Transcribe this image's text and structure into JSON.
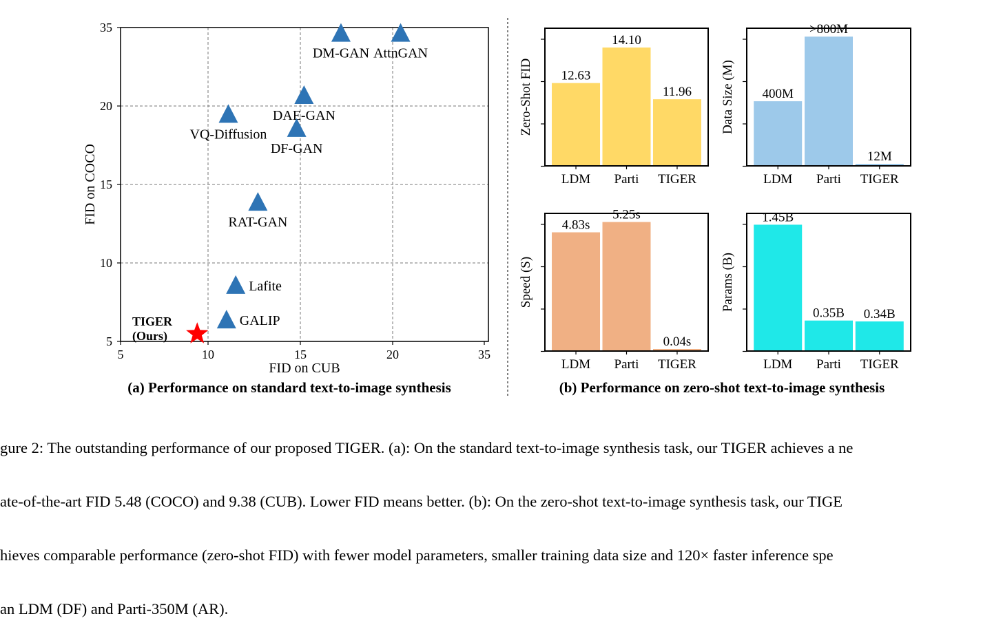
{
  "colors": {
    "marker": "#2e74b5",
    "tiger_marker": "#ff0000",
    "fid_bar": "#ffd966",
    "data_bar": "#9dc9ea",
    "speed_bar": "#f0b084",
    "params_bar": "#1fe8e8"
  },
  "chart_data": [
    {
      "type": "scatter",
      "subtitle": "(a) Performance on standard text-to-image synthesis",
      "xlabel": "FID on CUB",
      "ylabel": "FID on COCO",
      "xlim": [
        5,
        35
      ],
      "ylim": [
        5,
        35
      ],
      "xticks": [
        5,
        10,
        15,
        20,
        35
      ],
      "yticks": [
        5,
        10,
        15,
        20,
        35
      ],
      "grid": true,
      "marker_icon": "triangle-up",
      "points": [
        {
          "label": "DM-GAN",
          "x": 17.2,
          "y": 34.0,
          "anchor": "below"
        },
        {
          "label": "AttnGAN",
          "x": 21.3,
          "y": 34.0,
          "anchor": "below"
        },
        {
          "label": "DAE-GAN",
          "x": 15.2,
          "y": 22.1,
          "anchor": "below"
        },
        {
          "label": "VQ-Diffusion",
          "x": 11.1,
          "y": 19.5,
          "anchor": "below"
        },
        {
          "label": "DF-GAN",
          "x": 14.8,
          "y": 18.6,
          "anchor": "below"
        },
        {
          "label": "RAT-GAN",
          "x": 12.7,
          "y": 13.9,
          "anchor": "below"
        },
        {
          "label": "Lafite",
          "x": 11.5,
          "y": 8.6,
          "anchor": "right"
        },
        {
          "label": "GALIP",
          "x": 11.0,
          "y": 6.4,
          "anchor": "right"
        }
      ],
      "highlight": {
        "label_line1": "TIGER",
        "label_line2": "(Ours)",
        "x": 9.38,
        "y": 5.48,
        "marker_icon": "star"
      }
    },
    {
      "type": "bar",
      "subtitle": "(b) Performance on zero-shot text-to-image synthesis",
      "panels": [
        {
          "ylabel": "Zero-Shot FID",
          "categories": [
            "LDM",
            "Parti",
            "TIGER"
          ],
          "values": [
            12.63,
            14.1,
            11.96
          ],
          "labels": [
            "12.63",
            "14.10",
            "11.96"
          ],
          "ylim": [
            9.2,
            14.9
          ],
          "color_key": "fid_bar"
        },
        {
          "ylabel": "Data Size (M)",
          "categories": [
            "LDM",
            "Parti",
            "TIGER"
          ],
          "values": [
            400,
            800,
            12
          ],
          "labels": [
            "400M",
            ">800M",
            "12M"
          ],
          "ylim": [
            0,
            852
          ],
          "color_key": "data_bar"
        },
        {
          "ylabel": "Speed (S)",
          "categories": [
            "LDM",
            "Parti",
            "TIGER"
          ],
          "values": [
            4.83,
            5.25,
            0.04
          ],
          "labels": [
            "4.83s",
            "5.25s",
            "0.04s"
          ],
          "ylim": [
            0,
            5.6
          ],
          "color_key": "speed_bar"
        },
        {
          "ylabel": "Params (B)",
          "categories": [
            "LDM",
            "Parti",
            "TIGER"
          ],
          "values": [
            1.45,
            0.35,
            0.34
          ],
          "labels": [
            "1.45B",
            "0.35B",
            "0.34B"
          ],
          "ylim": [
            0,
            1.58
          ],
          "color_key": "params_bar"
        }
      ]
    }
  ],
  "caption": {
    "line1": "gure 2: The outstanding performance of our proposed TIGER. (a): On the standard text-to-image synthesis task, our TIGER achieves a ne",
    "line2": "ate-of-the-art FID 5.48 (COCO) and 9.38 (CUB). Lower FID means better. (b): On the zero-shot text-to-image synthesis task, our TIGE",
    "line3": "hieves comparable performance (zero-shot FID) with fewer model parameters, smaller training data size and 120× faster inference spe",
    "line4": "an LDM (DF) and Parti-350M (AR)."
  }
}
